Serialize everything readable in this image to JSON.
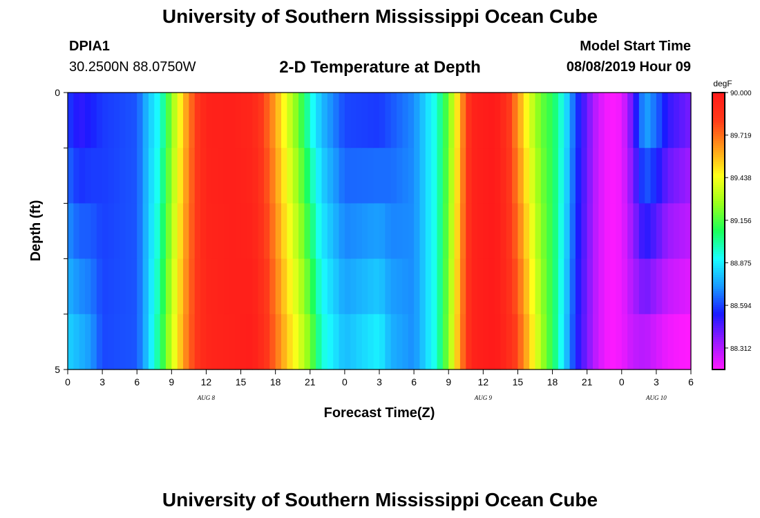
{
  "page": {
    "title_top": "University of Southern Mississippi Ocean Cube",
    "title_bottom": "University of Southern Mississippi Ocean Cube",
    "station_id": "DPIA1",
    "coordinates": "30.2500N 88.0750W",
    "model_start_label": "Model Start Time",
    "model_start_value": "08/08/2019 Hour 09"
  },
  "chart_data": {
    "type": "heatmap",
    "title": "2-D Temperature at Depth",
    "xlabel": "Forecast Time(Z)",
    "ylabel": "Depth (ft)",
    "y_tick_labels": [
      "0",
      "5"
    ],
    "y_range": [
      0,
      5
    ],
    "x_tick_labels": [
      "0",
      "3",
      "6",
      "9",
      "12",
      "15",
      "18",
      "21",
      "0",
      "3",
      "6",
      "9",
      "12",
      "15",
      "18",
      "21",
      "0",
      "3",
      "6"
    ],
    "day_labels": [
      {
        "text": "AUG 8",
        "tick_index": 4
      },
      {
        "text": "AUG 9",
        "tick_index": 12
      },
      {
        "text": "AUG 10",
        "tick_index": 17
      }
    ],
    "x_hours_range": [
      0,
      54
    ],
    "depth_bins": 5,
    "colorbar": {
      "unit": "degF",
      "range": [
        88.17,
        90.0
      ],
      "tick_values": [
        90.0,
        89.719,
        89.438,
        89.156,
        88.875,
        88.594,
        88.312
      ],
      "tick_labels": [
        "90.000",
        "89.719",
        "89.438",
        "89.156",
        "88.875",
        "88.594",
        "88.312"
      ],
      "colors": [
        "#ff1aff",
        "#9a1aff",
        "#1a1aff",
        "#1a9aff",
        "#1affff",
        "#1aff5a",
        "#9aff1a",
        "#ffff1a",
        "#ff9a1a",
        "#ff3a1a",
        "#ff1a1a"
      ]
    },
    "surface_series": [
      {
        "hour": 0,
        "value": 88.59
      },
      {
        "hour": 1,
        "value": 88.5
      },
      {
        "hour": 3,
        "value": 88.58
      },
      {
        "hour": 6,
        "value": 88.62
      },
      {
        "hour": 7,
        "value": 88.8
      },
      {
        "hour": 8,
        "value": 88.92
      },
      {
        "hour": 9,
        "value": 89.25
      },
      {
        "hour": 10,
        "value": 89.55
      },
      {
        "hour": 11,
        "value": 89.8
      },
      {
        "hour": 12,
        "value": 89.95
      },
      {
        "hour": 14,
        "value": 89.97
      },
      {
        "hour": 16,
        "value": 89.93
      },
      {
        "hour": 17,
        "value": 89.8
      },
      {
        "hour": 18,
        "value": 89.62
      },
      {
        "hour": 19,
        "value": 89.4
      },
      {
        "hour": 20,
        "value": 89.2
      },
      {
        "hour": 21,
        "value": 88.95
      },
      {
        "hour": 22,
        "value": 88.78
      },
      {
        "hour": 24,
        "value": 88.6
      },
      {
        "hour": 27,
        "value": 88.58
      },
      {
        "hour": 30,
        "value": 88.7
      },
      {
        "hour": 32,
        "value": 88.95
      },
      {
        "hour": 33,
        "value": 89.2
      },
      {
        "hour": 34,
        "value": 89.6
      },
      {
        "hour": 35,
        "value": 89.95
      },
      {
        "hour": 37,
        "value": 90.0
      },
      {
        "hour": 38,
        "value": 89.88
      },
      {
        "hour": 39,
        "value": 89.65
      },
      {
        "hour": 40,
        "value": 89.4
      },
      {
        "hour": 41,
        "value": 89.2
      },
      {
        "hour": 42,
        "value": 89.1
      },
      {
        "hour": 43,
        "value": 88.9
      },
      {
        "hour": 44,
        "value": 88.6
      },
      {
        "hour": 45,
        "value": 88.42
      },
      {
        "hour": 46,
        "value": 88.25
      },
      {
        "hour": 47,
        "value": 88.17
      },
      {
        "hour": 48,
        "value": 88.2
      },
      {
        "hour": 49,
        "value": 88.45
      },
      {
        "hour": 50,
        "value": 88.75
      },
      {
        "hour": 51,
        "value": 88.65
      },
      {
        "hour": 52,
        "value": 88.5
      },
      {
        "hour": 53,
        "value": 88.45
      },
      {
        "hour": 54,
        "value": 88.4
      }
    ],
    "bottom_series": [
      {
        "hour": 0,
        "value": 88.82
      },
      {
        "hour": 2,
        "value": 88.72
      },
      {
        "hour": 3,
        "value": 88.6
      },
      {
        "hour": 6,
        "value": 88.62
      },
      {
        "hour": 7,
        "value": 88.82
      },
      {
        "hour": 8,
        "value": 89.05
      },
      {
        "hour": 9,
        "value": 89.35
      },
      {
        "hour": 10,
        "value": 89.62
      },
      {
        "hour": 11,
        "value": 89.82
      },
      {
        "hour": 12,
        "value": 89.93
      },
      {
        "hour": 14,
        "value": 89.96
      },
      {
        "hour": 16,
        "value": 89.98
      },
      {
        "hour": 17,
        "value": 89.88
      },
      {
        "hour": 18,
        "value": 89.72
      },
      {
        "hour": 19,
        "value": 89.55
      },
      {
        "hour": 20,
        "value": 89.4
      },
      {
        "hour": 21,
        "value": 89.22
      },
      {
        "hour": 22,
        "value": 88.95
      },
      {
        "hour": 24,
        "value": 88.78
      },
      {
        "hour": 27,
        "value": 88.88
      },
      {
        "hour": 28,
        "value": 88.76
      },
      {
        "hour": 30,
        "value": 88.7
      },
      {
        "hour": 32,
        "value": 88.95
      },
      {
        "hour": 33,
        "value": 89.25
      },
      {
        "hour": 34,
        "value": 89.65
      },
      {
        "hour": 35,
        "value": 89.95
      },
      {
        "hour": 37,
        "value": 90.0
      },
      {
        "hour": 38,
        "value": 89.92
      },
      {
        "hour": 39,
        "value": 89.78
      },
      {
        "hour": 40,
        "value": 89.55
      },
      {
        "hour": 41,
        "value": 89.3
      },
      {
        "hour": 42,
        "value": 89.1
      },
      {
        "hour": 43,
        "value": 88.85
      },
      {
        "hour": 44,
        "value": 88.55
      },
      {
        "hour": 45,
        "value": 88.4
      },
      {
        "hour": 46,
        "value": 88.25
      },
      {
        "hour": 47,
        "value": 88.17
      },
      {
        "hour": 48,
        "value": 88.2
      },
      {
        "hour": 49,
        "value": 88.28
      },
      {
        "hour": 50,
        "value": 88.3
      },
      {
        "hour": 51,
        "value": 88.25
      },
      {
        "hour": 52,
        "value": 88.2
      },
      {
        "hour": 53,
        "value": 88.18
      },
      {
        "hour": 54,
        "value": 88.17
      }
    ]
  }
}
